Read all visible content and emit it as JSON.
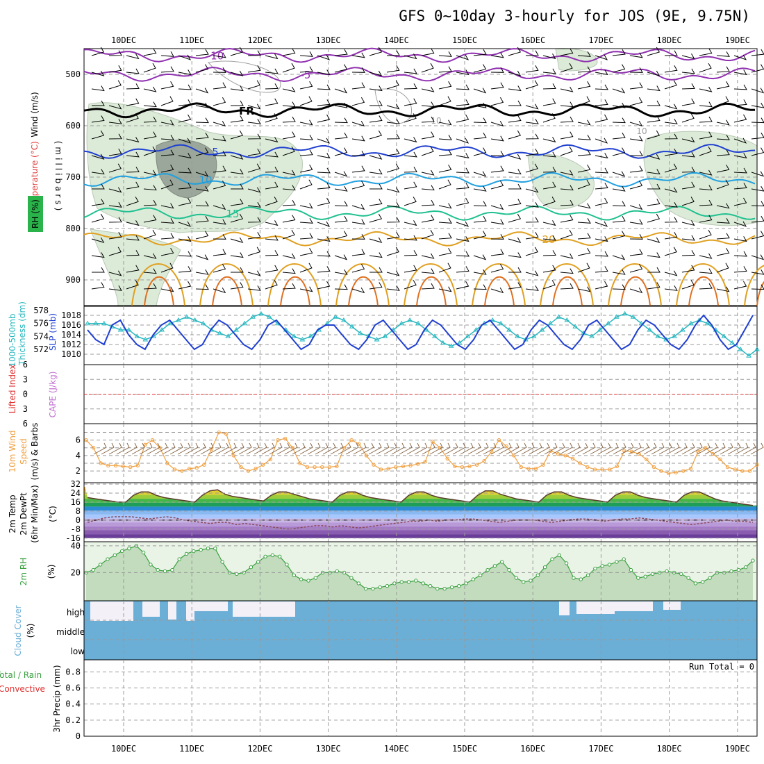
{
  "title": "GFS 0~10day 3-hourly for JOS (9E, 9.75N)",
  "run_total_label": "Run Total = 0",
  "colors": {
    "rh_fill": "#dcebd8",
    "rh_dark": "#9aa79a",
    "slp": "#1f3fd0",
    "thickness": "#29b8c0",
    "wind_line": "#f0a040",
    "rh_line": "#3aa040",
    "cloud": "#6baed6",
    "lifted": "#e03030",
    "cape": "#c070d0"
  },
  "chart_data": {
    "type": "line",
    "title": "GFS 0~10day 3-hourly for JOS (9E, 9.75N)",
    "date_labels": [
      "10DEC",
      "11DEC",
      "12DEC",
      "13DEC",
      "14DEC",
      "15DEC",
      "16DEC",
      "17DEC",
      "18DEC",
      "19DEC"
    ],
    "upper_air": {
      "ylabel_left": [
        "Wind (m/s)",
        "Temperature (°C)",
        "RH (%)"
      ],
      "ylabel_right": "(millibars)",
      "y_ticks": [
        500,
        600,
        700,
        800,
        900
      ],
      "ylim": [
        450,
        950
      ],
      "isotherms": [
        {
          "label": "-10",
          "color": "#9030b0",
          "level": 463
        },
        {
          "label": "-5",
          "color": "#9030b0",
          "level": 500
        },
        {
          "label": "FR",
          "color": "#000000",
          "level": 570
        },
        {
          "label": "5",
          "color": "#2040d0",
          "level": 650
        },
        {
          "label": "10",
          "color": "#20a0e0",
          "level": 705
        },
        {
          "label": "15",
          "color": "#20c090",
          "level": 770
        },
        {
          "label": "20",
          "color": "#e0a020",
          "level": 820
        }
      ],
      "rh_contour_label": "10"
    },
    "slp_thickness": {
      "ylabel_left": [
        "1000-500mb",
        "Thickness (dm)"
      ],
      "ylabel_right": "SLP (mb)",
      "thickness_ticks": [
        572,
        574,
        576,
        578
      ],
      "slp_ticks": [
        1010,
        1012,
        1014,
        1016,
        1018
      ],
      "slp": [
        1015,
        1013,
        1012,
        1016,
        1017,
        1014,
        1012,
        1011,
        1014,
        1016,
        1017,
        1015,
        1013,
        1011,
        1012,
        1015,
        1017,
        1016,
        1014,
        1012,
        1011,
        1013,
        1016,
        1017,
        1015,
        1013,
        1011,
        1012,
        1015,
        1016,
        1016,
        1014,
        1012,
        1011,
        1013,
        1016,
        1017,
        1015,
        1013,
        1011,
        1012,
        1015,
        1017,
        1016,
        1014,
        1012,
        1011,
        1013,
        1016,
        1017,
        1015,
        1013,
        1011,
        1012,
        1015,
        1017,
        1016,
        1014,
        1012,
        1011,
        1013,
        1016,
        1017,
        1015,
        1013,
        1011,
        1012,
        1015,
        1017,
        1016,
        1014,
        1012,
        1011,
        1013,
        1016,
        1018,
        1016,
        1013,
        1011,
        1012,
        1015,
        1018
      ],
      "thickness": [
        576,
        576,
        576,
        575.5,
        575,
        575,
        574,
        573.5,
        574,
        575,
        576,
        576.5,
        577,
        576.5,
        576,
        575,
        574.5,
        574,
        575,
        576,
        577,
        577.5,
        577,
        576,
        575,
        574,
        573.5,
        574,
        575,
        576,
        577,
        576.5,
        575.5,
        574.5,
        574,
        573.5,
        574,
        575,
        576,
        576.5,
        576,
        575,
        574,
        573,
        572.5,
        573,
        574,
        575,
        576,
        576.5,
        576,
        575,
        574,
        573.5,
        574,
        575,
        576,
        577,
        576.5,
        575.5,
        574.5,
        574,
        575,
        576,
        577,
        577.5,
        577,
        576,
        575,
        574,
        573.5,
        574,
        575,
        576,
        576.5,
        576,
        575,
        574,
        573,
        572,
        571,
        572
      ]
    },
    "lifted_cape": {
      "ylabel_left": [
        "Lifted Index"
      ],
      "ylabel_right": "CAPE (J/kg)",
      "ticks": [
        -6,
        -3,
        0,
        3,
        6
      ],
      "lifted_index": []
    },
    "wind10m": {
      "ylabel": [
        "10m Wind",
        "Speed",
        "(m/s) & Barbs"
      ],
      "ticks": [
        2,
        4,
        6
      ],
      "values": [
        6,
        5,
        3,
        2.7,
        2.7,
        2.6,
        2.5,
        2.7,
        5.4,
        6,
        5,
        3,
        2.2,
        2,
        2.3,
        2.4,
        2.8,
        4.8,
        7,
        6.8,
        4,
        2.5,
        2,
        2.3,
        2.8,
        3.5,
        6,
        6.2,
        5,
        3,
        2.5,
        2.5,
        2.5,
        2.5,
        2.6,
        5,
        6,
        5.5,
        4,
        2.8,
        2.2,
        2.3,
        2.5,
        2.6,
        2.7,
        2.9,
        3.2,
        5.8,
        5,
        3.6,
        2.6,
        2.5,
        2.6,
        2.8,
        3.3,
        4.5,
        6,
        5.2,
        4,
        2.5,
        2.3,
        2.3,
        2.8,
        4.6,
        4.2,
        4,
        3.6,
        3,
        2.5,
        2.2,
        2.2,
        2.2,
        2.6,
        4.6,
        4.5,
        4.2,
        3.5,
        2.5,
        2,
        1.7,
        1.8,
        2,
        2.3,
        4.5,
        5,
        4.2,
        3.5,
        2.5,
        2.2,
        2,
        2,
        2.8
      ]
    },
    "temp2m": {
      "ylabel": [
        "2m Temp",
        "2m DewPt",
        "(6hr Min/Max)",
        "(°C)"
      ],
      "ticks": [
        -16,
        -8,
        0,
        8,
        16,
        24,
        32
      ],
      "temp": [
        20,
        19,
        18,
        17,
        16,
        16,
        22,
        25,
        25,
        22,
        20,
        19,
        18,
        17,
        16,
        22,
        26,
        27,
        23,
        21,
        20,
        19,
        18,
        17,
        22,
        25,
        25,
        23,
        21,
        19,
        18,
        17,
        16,
        22,
        25,
        25,
        22,
        20,
        19,
        18,
        17,
        16,
        22,
        25,
        25,
        22,
        20,
        19,
        18,
        17,
        16,
        22,
        26,
        26,
        23,
        21,
        19,
        18,
        17,
        16,
        22,
        25,
        25,
        22,
        20,
        19,
        18,
        17,
        16,
        22,
        25,
        25,
        22,
        20,
        19,
        18,
        17,
        16,
        22,
        25,
        25,
        22,
        19,
        17,
        16,
        15,
        14,
        13
      ],
      "dewpt": [
        -2,
        0,
        2,
        3,
        3,
        3,
        2,
        1,
        2,
        3,
        2,
        0,
        -1,
        -2,
        -3,
        -2,
        -2,
        -4,
        -3,
        -4,
        -5,
        -6,
        -7,
        -8,
        -7,
        -6,
        -5,
        -5,
        -6,
        -5,
        -6,
        -7,
        -6,
        -5,
        -4,
        -3,
        -2,
        -1,
        -1,
        0,
        -1,
        0,
        0,
        1,
        1,
        0,
        -1,
        -2,
        -1,
        0,
        0,
        0,
        -1,
        -2,
        -1,
        0,
        1,
        1,
        0,
        -1,
        0,
        1,
        1,
        2,
        1,
        0,
        -1,
        -2,
        -3,
        -4,
        -3,
        -2,
        -1,
        0,
        -1,
        -1,
        -2
      ]
    },
    "rh2m": {
      "ylabel": [
        "2m RH",
        "(%)"
      ],
      "ticks": [
        20,
        40
      ],
      "values": [
        20,
        22,
        26,
        30,
        33,
        36,
        38,
        40,
        35,
        26,
        22,
        21,
        22,
        30,
        34,
        36,
        37,
        38,
        38,
        28,
        20,
        19,
        20,
        24,
        28,
        32,
        33,
        32,
        26,
        18,
        15,
        14,
        16,
        20,
        20,
        21,
        20,
        16,
        12,
        8,
        8,
        9,
        10,
        12,
        13,
        13,
        14,
        12,
        10,
        8,
        8,
        9,
        10,
        12,
        15,
        18,
        22,
        25,
        28,
        22,
        16,
        13,
        14,
        18,
        24,
        30,
        33,
        27,
        16,
        15,
        18,
        23,
        25,
        26,
        28,
        30,
        22,
        16,
        17,
        19,
        20,
        21,
        20,
        19,
        16,
        12,
        13,
        16,
        20,
        20,
        21,
        22,
        24,
        29
      ]
    },
    "cloud_cover": {
      "ylabel": [
        "Cloud Cover",
        "(%)"
      ],
      "levels": [
        "high",
        "middle",
        "low"
      ]
    },
    "precip": {
      "ylabel_left": [
        "Total / Rain",
        "Convective"
      ],
      "ylabel_right": "3hr Precip (mm)",
      "ticks": [
        0,
        0.2,
        0.4,
        0.6,
        0.8
      ],
      "values": []
    }
  }
}
